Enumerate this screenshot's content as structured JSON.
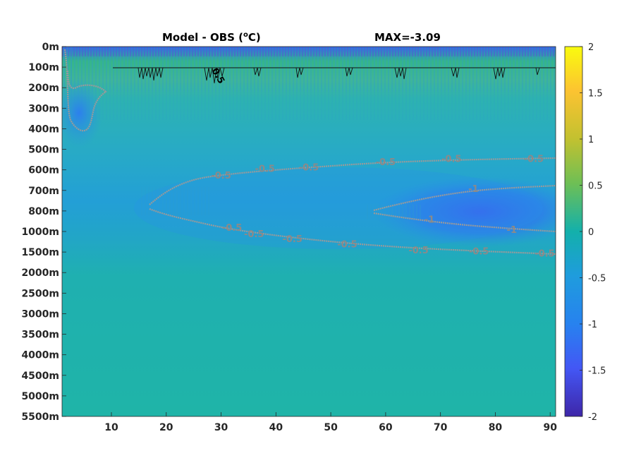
{
  "chart_data": {
    "type": "heatmap",
    "title_left": "Model - OBS (",
    "title_unit_sup": "o",
    "title_unit_tail": "C)",
    "title_right": "MAX=-3.09",
    "x_ticks": [
      "10",
      "20",
      "30",
      "40",
      "50",
      "60",
      "70",
      "80",
      "90"
    ],
    "x_tick_values": [
      10,
      20,
      30,
      40,
      50,
      60,
      70,
      80,
      90
    ],
    "xlim": [
      1,
      91
    ],
    "y_ticks": [
      "0m",
      "100m",
      "200m",
      "300m",
      "400m",
      "500m",
      "600m",
      "700m",
      "800m",
      "1000m",
      "1500m",
      "2000m",
      "2500m",
      "3000m",
      "3500m",
      "4000m",
      "4500m",
      "5000m",
      "5500m"
    ],
    "colorbar": {
      "ticks": [
        "2",
        "1.5",
        "1",
        "0.5",
        "0",
        "-0.5",
        "-1",
        "-1.5",
        "-2"
      ],
      "range": [
        -2,
        2
      ],
      "colormap": "parula"
    },
    "contours": [
      {
        "level": -0.5,
        "label": "-0.5",
        "path": "upper-band"
      },
      {
        "level": -0.5,
        "label": "-0.5",
        "path": "lower-band"
      },
      {
        "level": -1,
        "label": "-1",
        "path": "inner-upper"
      },
      {
        "level": -1,
        "label": "-1",
        "path": "inner-lower"
      }
    ],
    "contour_labels": [
      {
        "text": "-0.5",
        "x": 38,
        "y": 5.92
      },
      {
        "text": "-0.5",
        "x": 46,
        "y": 5.85
      },
      {
        "text": "-0.5",
        "x": 60,
        "y": 5.6
      },
      {
        "text": "-0.5",
        "x": 72,
        "y": 5.45
      },
      {
        "text": "-0.5",
        "x": 87,
        "y": 5.45
      },
      {
        "text": "-0.5",
        "x": 30,
        "y": 6.25
      },
      {
        "text": "-0.5",
        "x": 32,
        "y": 8.8
      },
      {
        "text": "-0.5",
        "x": 36,
        "y": 9.1
      },
      {
        "text": "-0.5",
        "x": 43,
        "y": 9.35
      },
      {
        "text": "-0.5",
        "x": 53,
        "y": 9.6
      },
      {
        "text": "-0.5",
        "x": 66,
        "y": 9.9
      },
      {
        "text": "-0.5",
        "x": 77,
        "y": 9.95
      },
      {
        "text": "-0.5",
        "x": 89,
        "y": 10.05
      },
      {
        "text": "-1",
        "x": 76,
        "y": 6.9
      },
      {
        "text": "-1",
        "x": 68,
        "y": 8.4
      },
      {
        "text": "-1",
        "x": 83,
        "y": 8.9
      }
    ],
    "surface_labels": [
      {
        "text": "0.5",
        "x": 29,
        "y": 1.5
      }
    ]
  }
}
